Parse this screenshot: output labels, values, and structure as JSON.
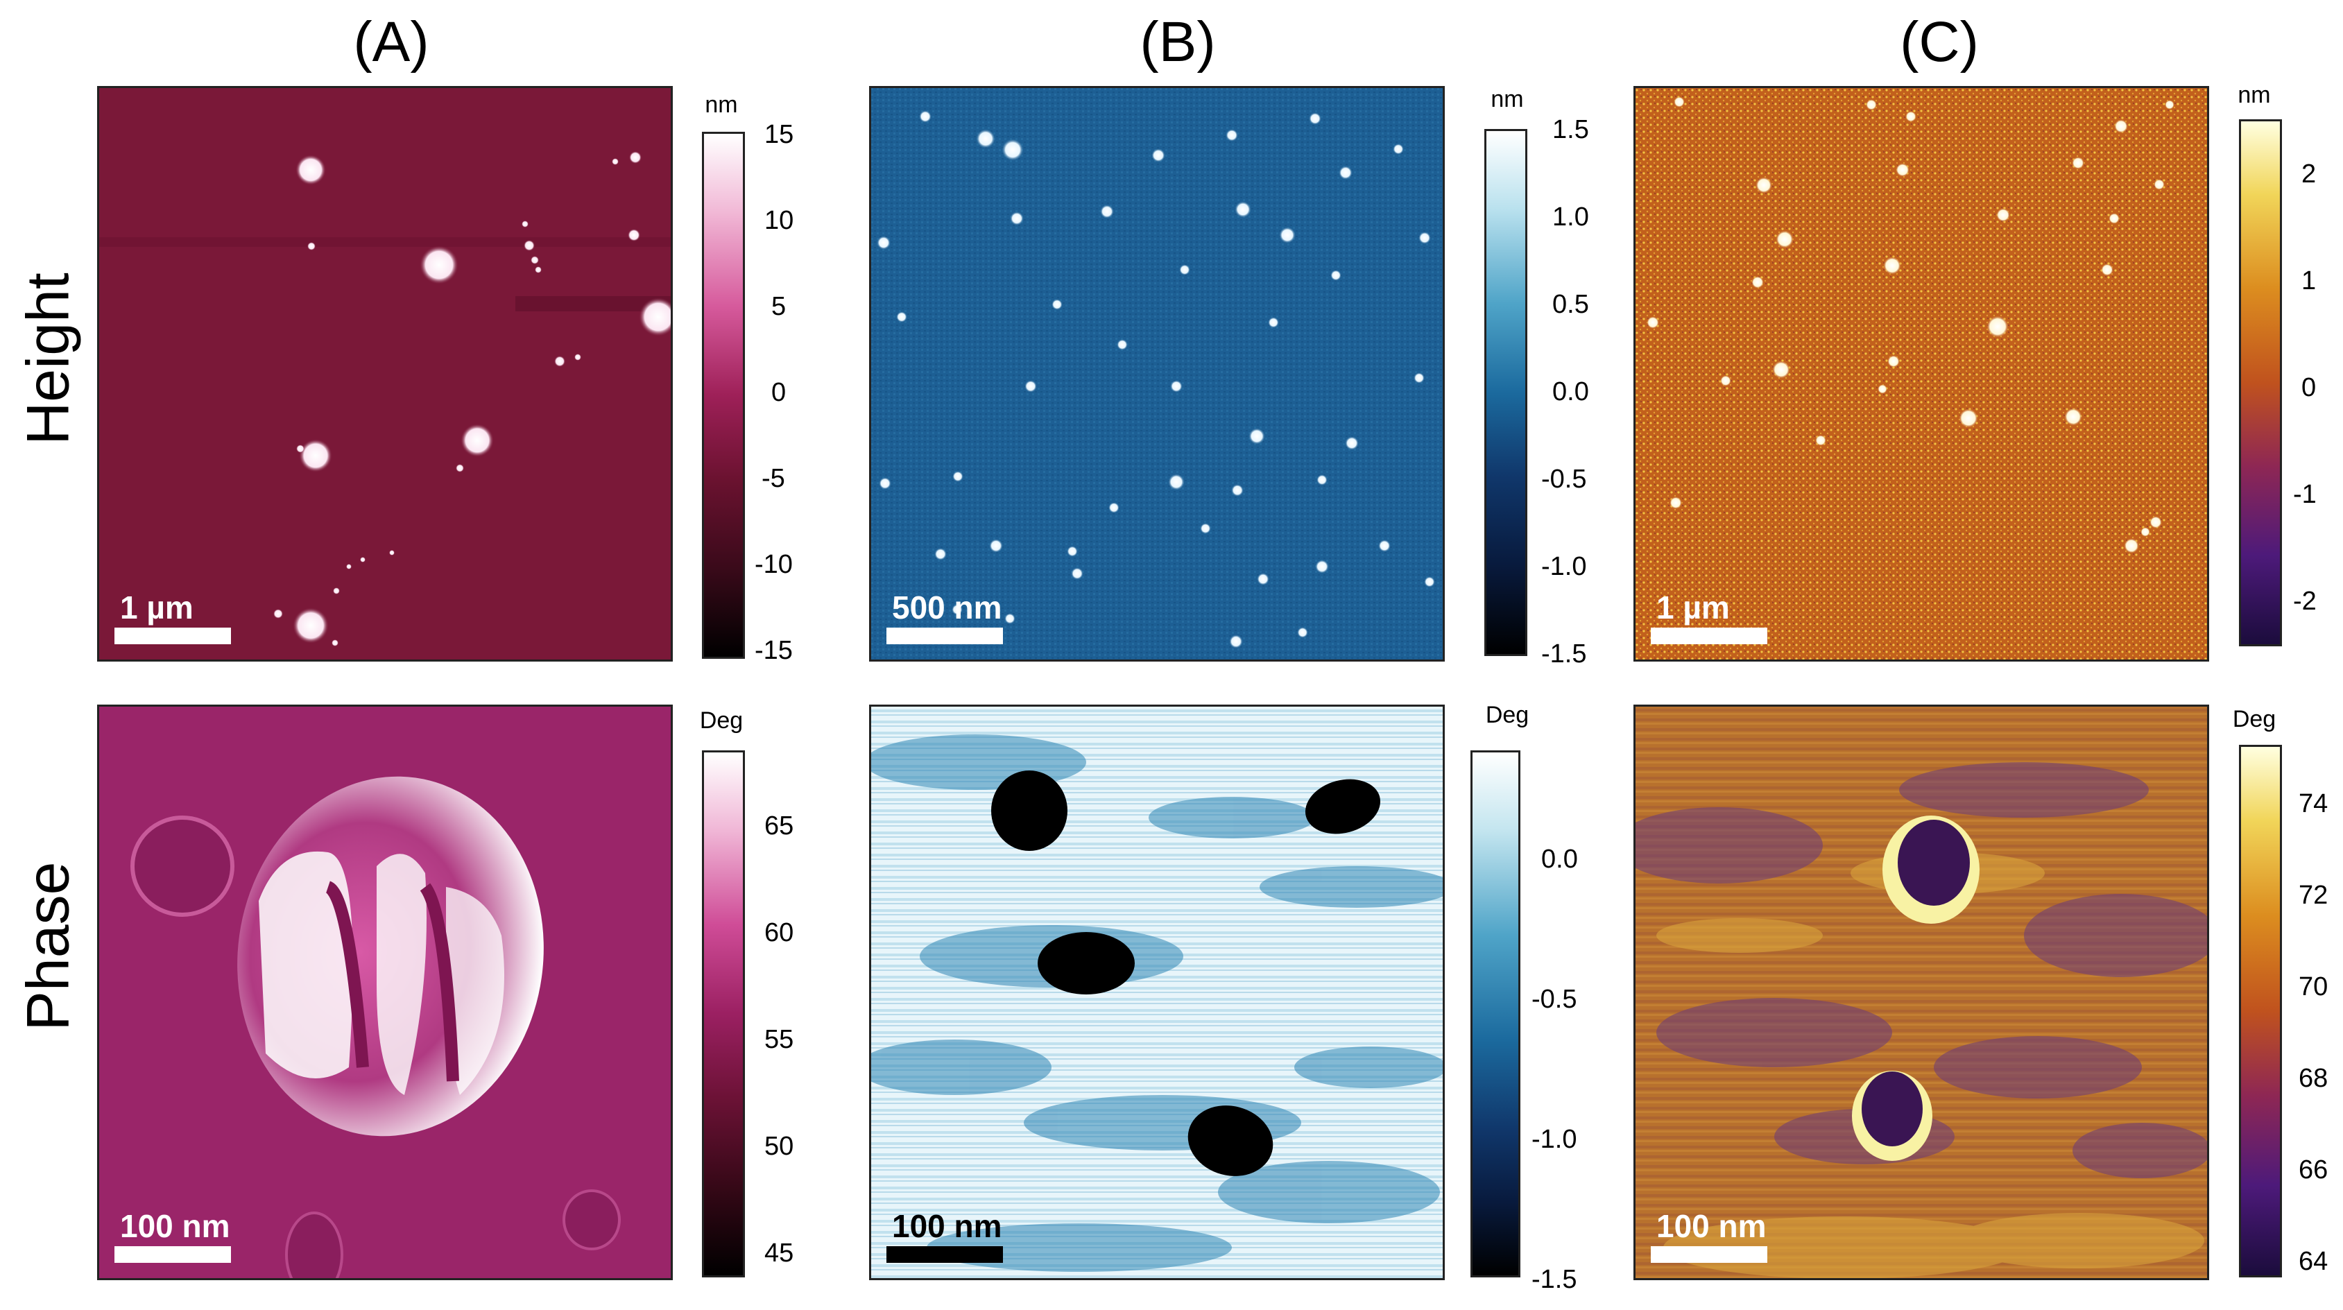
{
  "columns": [
    "(A)",
    "(B)",
    "(C)"
  ],
  "rows": [
    "Height",
    "Phase"
  ],
  "panels": {
    "a_height": {
      "scale": "1 µm",
      "unit": "nm",
      "ticks": [
        "15",
        "10",
        "5",
        "0",
        "-5",
        "-10",
        "-15"
      ]
    },
    "b_height": {
      "scale": "500 nm",
      "unit": "nm",
      "ticks": [
        "1.5",
        "1.0",
        "0.5",
        "0.0",
        "-0.5",
        "-1.0",
        "-1.5"
      ]
    },
    "c_height": {
      "scale": "1 µm",
      "unit": "nm",
      "ticks": [
        "2",
        "1",
        "0",
        "-1",
        "-2"
      ]
    },
    "a_phase": {
      "scale": "100 nm",
      "unit": "Deg",
      "ticks": [
        "65",
        "60",
        "55",
        "50",
        "45"
      ]
    },
    "b_phase": {
      "scale": "100 nm",
      "unit": "Deg",
      "ticks": [
        "0.0",
        "-0.5",
        "-1.0",
        "-1.5"
      ]
    },
    "c_phase": {
      "scale": "100 nm",
      "unit": "Deg",
      "ticks": [
        "74",
        "72",
        "70",
        "68",
        "66",
        "64"
      ]
    }
  },
  "colors": {
    "a_bg": "#7a1838",
    "b_bg": "#1d5f94",
    "c_bg": "#c2601c",
    "a_phase_bg": "#9a2569",
    "b_phase_bg": "#d6ecf3",
    "c_phase_bg": "#b8712d"
  }
}
